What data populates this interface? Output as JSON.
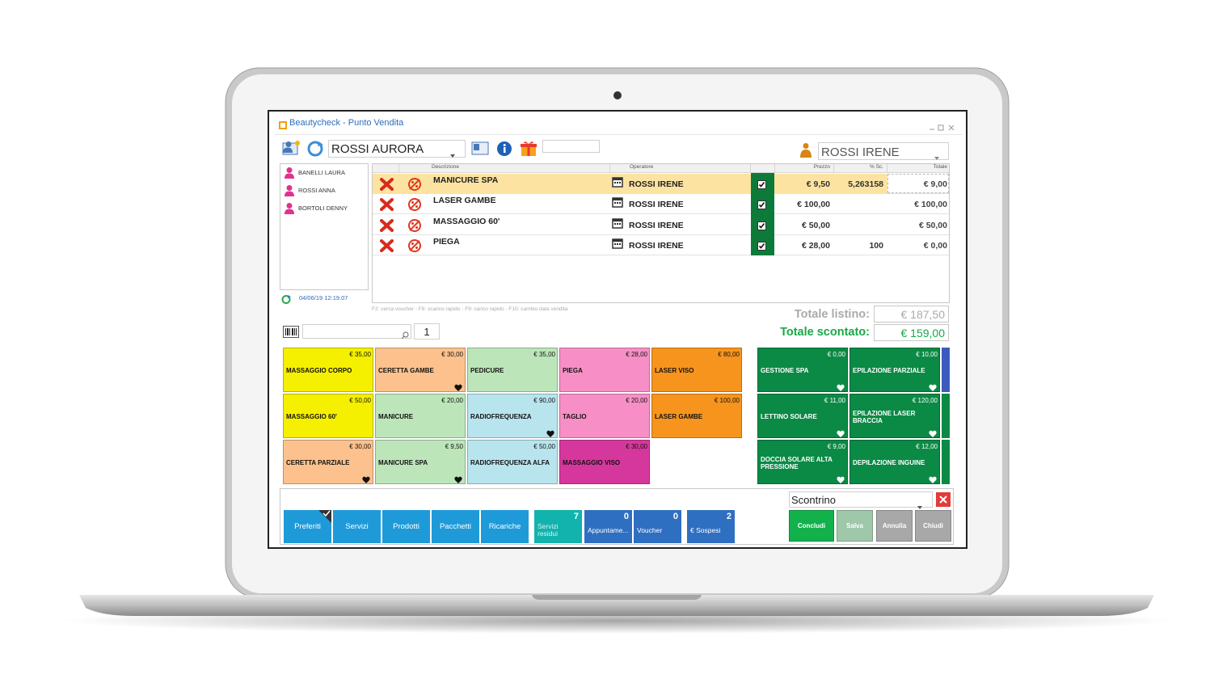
{
  "window": {
    "title": "Beautycheck - Punto Vendita"
  },
  "client": "ROSSI AURORA",
  "operator": "ROSSI IRENE",
  "clients": [
    "BANELLI LAURA",
    "ROSSI ANNA",
    "BORTOLI DENNY"
  ],
  "timestamp": "04/06/19 12:19.07",
  "table": {
    "headers": {
      "description": "Descrizione",
      "operator": "Operatore",
      "price": "Prezzo",
      "discount": "% Sc.",
      "total": "Totale"
    },
    "rows": [
      {
        "description": "MANICURE SPA",
        "operator": "ROSSI IRENE",
        "price": "€ 9,50",
        "discount": "5,263158",
        "total": "€ 9,00",
        "selected": true
      },
      {
        "description": "LASER GAMBE",
        "operator": "ROSSI IRENE",
        "price": "€ 100,00",
        "total": "€ 100,00"
      },
      {
        "description": "MASSAGGIO 60'",
        "operator": "ROSSI IRENE",
        "price": "€ 50,00",
        "total": "€ 50,00"
      },
      {
        "description": "PIEGA",
        "operator": "ROSSI IRENE",
        "price": "€ 28,00",
        "discount": "100",
        "total": "€ 0,00"
      }
    ]
  },
  "hint": "F2: cerca voucher - F8: scarico rapido - F9: carico rapido - F10: cambio data vendita",
  "totals": {
    "list_label": "Totale listino:",
    "list_value": "€ 187,50",
    "discounted_label": "Totale scontato:",
    "discounted_value": "€ 159,00"
  },
  "quantity": "1",
  "tiles": {
    "heart_color": "#111111",
    "items": [
      {
        "name": "MASSAGGIO CORPO",
        "price": "€ 35,00",
        "color": "#f5ef00"
      },
      {
        "name": "CERETTA GAMBE",
        "price": "€ 30,00",
        "color": "#fcc18d",
        "favorite": true
      },
      {
        "name": "PEDICURE",
        "price": "€ 35,00",
        "color": "#bce6b9"
      },
      {
        "name": "PIEGA",
        "price": "€ 28,00",
        "color": "#f78fc6"
      },
      {
        "name": "LASER VISO",
        "price": "€ 80,00",
        "color": "#f7941d"
      },
      {
        "name": "MASSAGGIO 60'",
        "price": "€ 50,00",
        "color": "#f5ef00"
      },
      {
        "name": "MANICURE",
        "price": "€ 20,00",
        "color": "#bce6b9"
      },
      {
        "name": "RADIOFREQUENZA",
        "price": "€ 90,00",
        "color": "#b8e4ee",
        "favorite": true
      },
      {
        "name": "TAGLIO",
        "price": "€ 20,00",
        "color": "#f78fc6"
      },
      {
        "name": "LASER GAMBE",
        "price": "€ 100,00",
        "color": "#f7941d"
      },
      {
        "name": "CERETTA PARZIALE",
        "price": "€ 30,00",
        "color": "#fcc18d",
        "favorite": true
      },
      {
        "name": "MANICURE SPA",
        "price": "€ 9,50",
        "color": "#bce6b9",
        "favorite": true
      },
      {
        "name": "RADIOFREQUENZA ALFA",
        "price": "€ 50,00",
        "color": "#b8e4ee"
      },
      {
        "name": "MASSAGGIO VISO",
        "price": "€ 30,00",
        "color": "#d6379d"
      }
    ]
  },
  "services": {
    "heart_color": "#ffffff",
    "color": "#0b8a45",
    "items": [
      {
        "name": "GESTIONE SPA",
        "price": "€ 0,00",
        "favorite": true
      },
      {
        "name": "EPILAZIONE PARZIALE",
        "price": "€ 10,00",
        "favorite": true
      },
      {
        "name": "LETTINO SOLARE",
        "price": "€ 11,00",
        "favorite": true
      },
      {
        "name": "EPILAZIONE LASER BRACCIA",
        "price": "€ 120,00",
        "favorite": true
      },
      {
        "name": "DOCCIA SOLARE ALTA PRESSIONE",
        "price": "€ 9,00",
        "favorite": true
      },
      {
        "name": "DEPILAZIONE INGUINE",
        "price": "€ 12,00",
        "favorite": true
      }
    ]
  },
  "tabs": [
    {
      "label": "Preferiti",
      "selected": true
    },
    {
      "label": "Servizi"
    },
    {
      "label": "Prodotti"
    },
    {
      "label": "Pacchetti"
    },
    {
      "label": "Ricariche"
    }
  ],
  "counters": [
    {
      "label": "Servizi residui",
      "count": 7,
      "color": "#12b3ad"
    },
    {
      "label": "Appuntame...",
      "count": 0,
      "color": "#2f6fc1"
    },
    {
      "label": "Voucher",
      "count": 0,
      "color": "#2f6fc1"
    },
    {
      "label": "€ Sospesi",
      "count": 2,
      "color": "#2f6fc1"
    }
  ],
  "document_type": "Scontrino",
  "actions": [
    {
      "label": "Concludi",
      "color": "#12b14b"
    },
    {
      "label": "Salva",
      "color": "#9fc7a9"
    },
    {
      "label": "Annulla",
      "color": "#a8a8a8"
    },
    {
      "label": "Chiudi",
      "color": "#a8a8a8"
    }
  ]
}
